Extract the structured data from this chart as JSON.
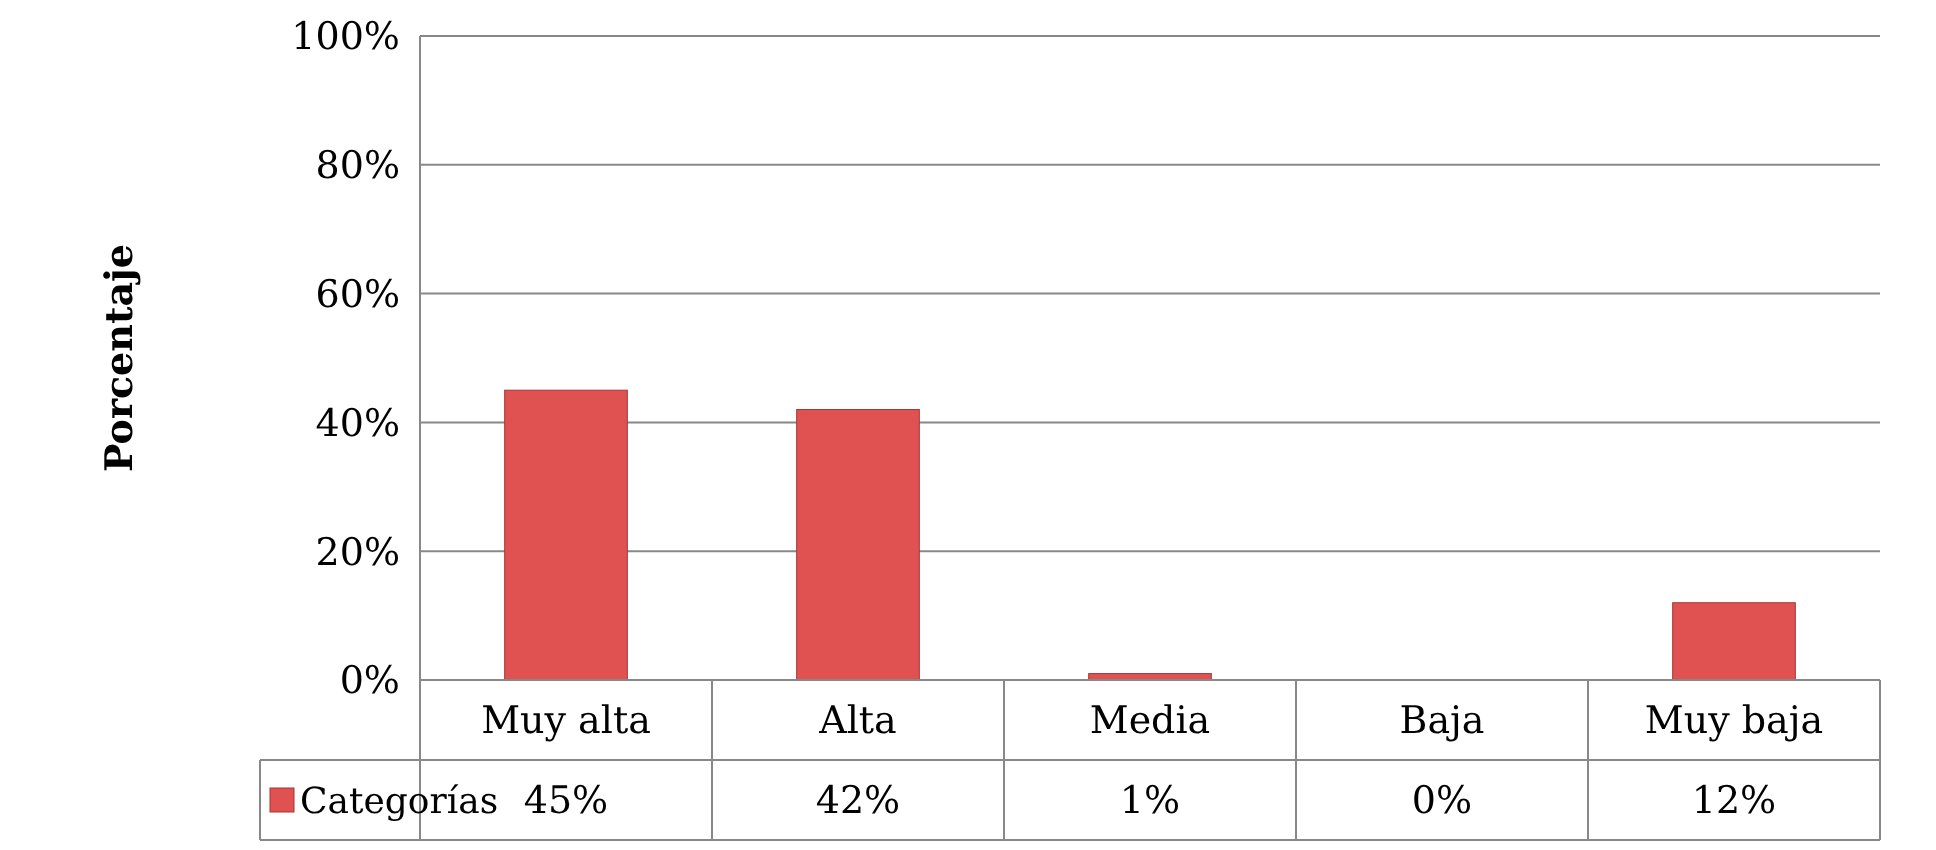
{
  "chart_data": {
    "type": "bar",
    "ylabel": "Porcentaje",
    "categories": [
      "Muy alta",
      "Alta",
      "Media",
      "Baja",
      "Muy baja"
    ],
    "series": [
      {
        "name": "Categorías",
        "color": "#e05252",
        "values": [
          45,
          42,
          1,
          0,
          12
        ]
      }
    ],
    "ylim": [
      0,
      100
    ],
    "yticks": [
      {
        "value": 0,
        "label": "0%"
      },
      {
        "value": 20,
        "label": "20%"
      },
      {
        "value": 40,
        "label": "40%"
      },
      {
        "value": 60,
        "label": "60%"
      },
      {
        "value": 80,
        "label": "80%"
      },
      {
        "value": 100,
        "label": "100%"
      }
    ],
    "value_labels": [
      "45%",
      "42%",
      "1%",
      "0%",
      "12%"
    ],
    "grid": "y",
    "legend": "bottom"
  }
}
